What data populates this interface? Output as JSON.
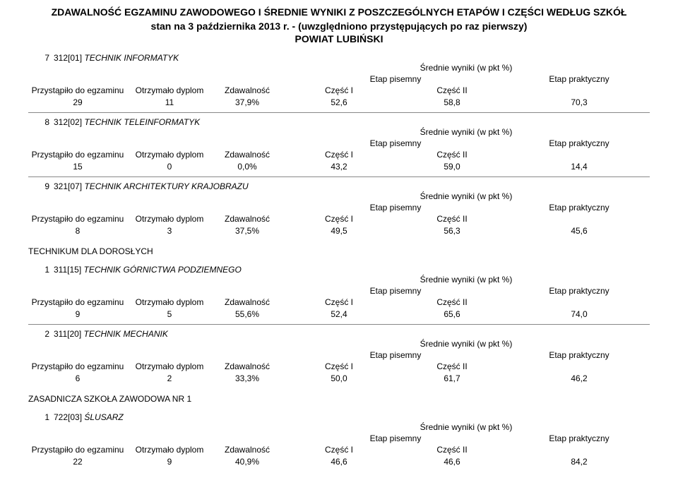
{
  "title_line1": "ZDAWALNOŚĆ EGZAMINU ZAWODOWEGO I ŚREDNIE WYNIKI Z POSZCZEGÓLNYCH ETAPÓW I CZĘŚCI WEDŁUG SZKÓŁ",
  "title_line2": "stan na 3 października 2013 r. - (uwzględniono przystępujących po raz pierwszy)",
  "powiat": "POWIAT LUBIŃSKI",
  "labels": {
    "przystapilo": "Przystąpiło do egzaminu",
    "otrzymalo": "Otrzymało dyplom",
    "zdawalnosc": "Zdawalność",
    "srednie": "Średnie wyniki (w pkt %)",
    "etap_pisemny": "Etap pisemny",
    "etap_praktyczny": "Etap praktyczny",
    "czesc1": "Część I",
    "czesc2": "Część II"
  },
  "sections": [
    {
      "heading": "",
      "rows": [
        {
          "num": "7",
          "code": "312[01]",
          "name": "TECHNIK INFORMATYK",
          "p": "29",
          "o": "11",
          "z": "37,9%",
          "c1": "52,6",
          "c2": "58,8",
          "prk": "70,3",
          "firstNoBorder": true
        },
        {
          "num": "8",
          "code": "312[02]",
          "name": "TECHNIK TELEINFORMATYK",
          "p": "15",
          "o": "0",
          "z": "0,0%",
          "c1": "43,2",
          "c2": "59,0",
          "prk": "14,4"
        },
        {
          "num": "9",
          "code": "321[07]",
          "name": "TECHNIK ARCHITEKTURY KRAJOBRAZU",
          "p": "8",
          "o": "3",
          "z": "37,5%",
          "c1": "49,5",
          "c2": "56,3",
          "prk": "45,6"
        }
      ]
    },
    {
      "heading": "TECHNIKUM DLA DOROSŁYCH",
      "rows": [
        {
          "num": "1",
          "code": "311[15]",
          "name": "TECHNIK GÓRNICTWA PODZIEMNEGO",
          "p": "9",
          "o": "5",
          "z": "55,6%",
          "c1": "52,4",
          "c2": "65,6",
          "prk": "74,0",
          "firstNoBorder": true
        },
        {
          "num": "2",
          "code": "311[20]",
          "name": "TECHNIK MECHANIK",
          "p": "6",
          "o": "2",
          "z": "33,3%",
          "c1": "50,0",
          "c2": "61,7",
          "prk": "46,2"
        }
      ]
    },
    {
      "heading": "ZASADNICZA SZKOŁA ZAWODOWA NR 1",
      "rows": [
        {
          "num": "1",
          "code": "722[03]",
          "name": "ŚLUSARZ",
          "p": "22",
          "o": "9",
          "z": "40,9%",
          "c1": "46,6",
          "c2": "46,6",
          "prk": "84,2",
          "firstNoBorder": true
        }
      ]
    }
  ],
  "colors": {
    "background": "#ffffff",
    "text": "#000000",
    "rule": "#888888"
  },
  "typography": {
    "family": "Arial",
    "title_size_pt": 14,
    "body_size_pt": 12
  }
}
